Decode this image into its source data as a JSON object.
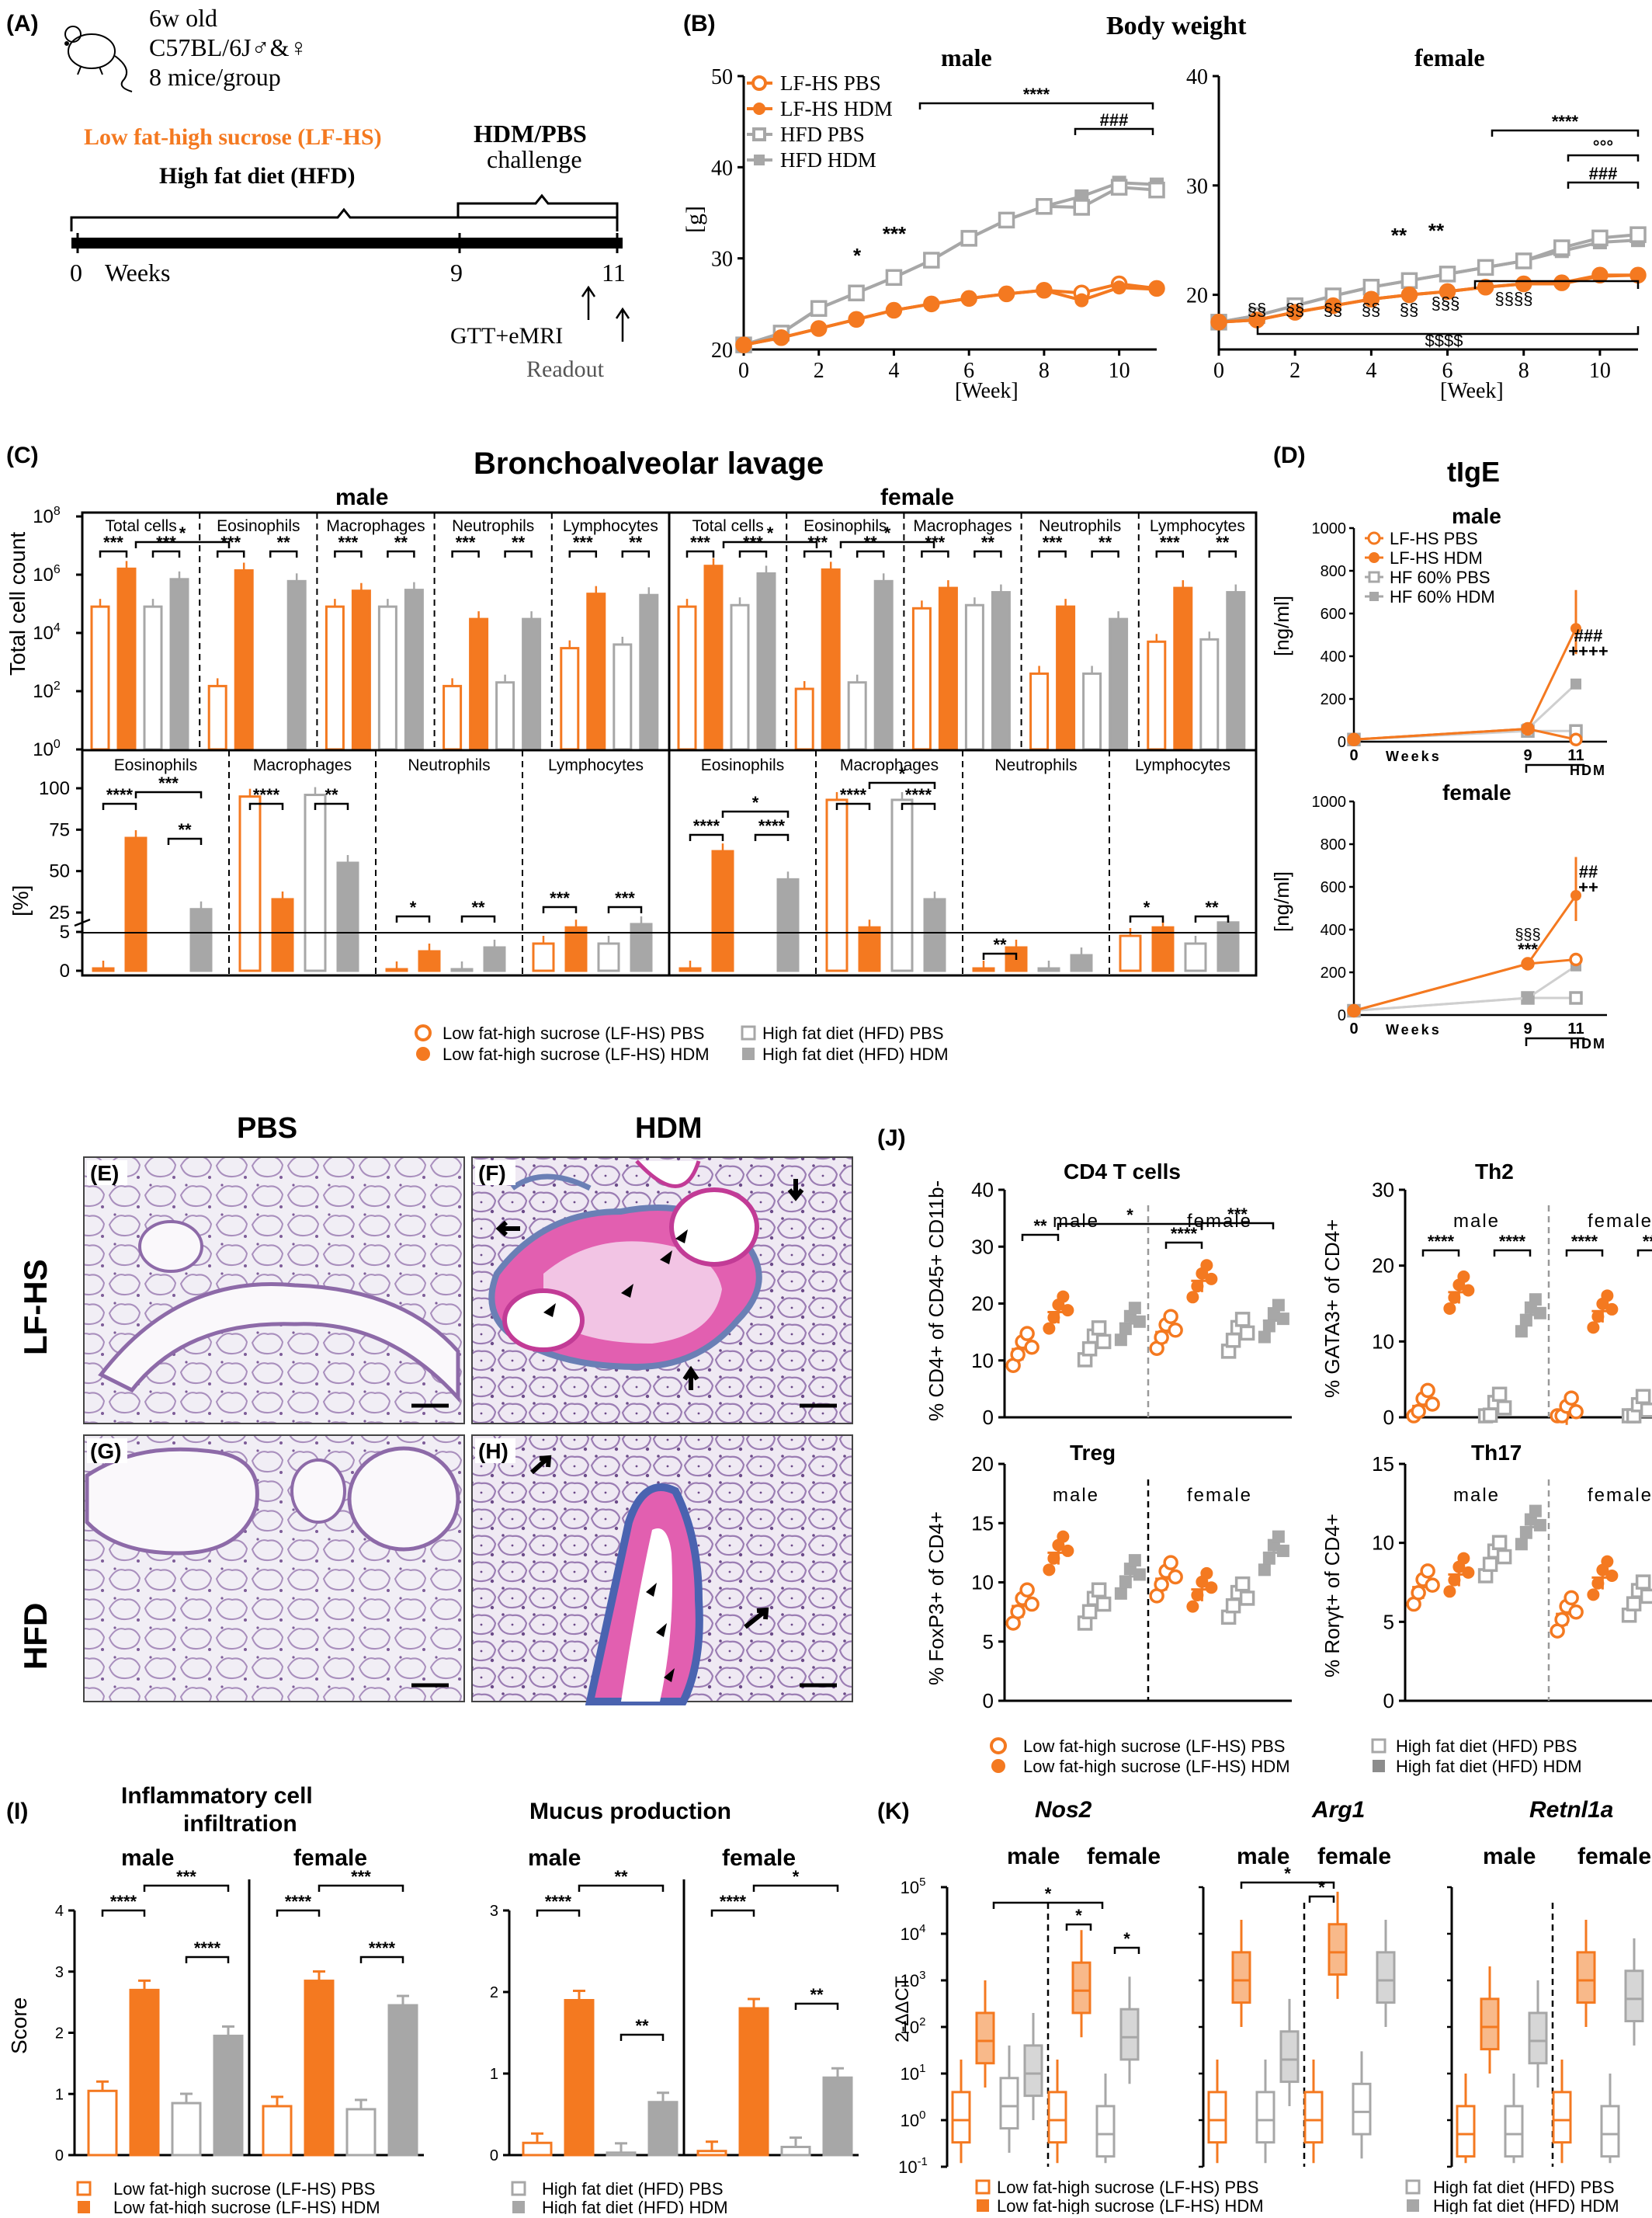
{
  "colors": {
    "orange": "#F47920",
    "gray": "#A7A7A7",
    "gray_dark": "#8C8C8C",
    "black": "#000000"
  },
  "panels": {
    "A": {
      "label": "(A)",
      "mouse_info": [
        "6w old",
        "C57BL/6J♂&♀",
        "8 mice/group"
      ],
      "diet_lf": "Low fat-high sucrose (LF-HS)",
      "diet_hfd": "High fat diet (HFD)",
      "challenge_title": "HDM/PBS",
      "challenge_sub": "challenge",
      "ticks": [
        "0",
        "9",
        "11"
      ],
      "weeks_label": "Weeks",
      "gtt": "GTT+eMRI",
      "readout": "Readout"
    },
    "B": {
      "label": "(B)",
      "title": "Body weight",
      "ylabel": "[g]",
      "xlabel": "[Week]",
      "male": {
        "title": "male",
        "sig": [
          "****",
          "###",
          "*",
          "***"
        ]
      },
      "female": {
        "title": "female",
        "sig": [
          "****",
          "°°°",
          "###",
          "**",
          "**",
          "§§",
          "§§",
          "§§",
          "§§",
          "§§§",
          "§§§",
          "§§§§",
          "$$$$"
        ]
      },
      "legend": [
        "LF-HS PBS",
        "LF-HS HDM",
        "HFD PBS",
        "HFD HDM"
      ]
    },
    "C": {
      "label": "(C)",
      "title": "Bronchoalveolar lavage",
      "ylabel_top": "Total cell count",
      "ylabel_bottom": "[%]",
      "male": "male",
      "female": "female",
      "top_groups": [
        "Total cells",
        "Eosinophils",
        "Macrophages",
        "Neutrophils",
        "Lymphocytes"
      ],
      "bottom_groups": [
        "Eosinophils",
        "Macrophages",
        "Neutrophils",
        "Lymphocytes"
      ],
      "legend": [
        "Low fat-high sucrose (LF-HS) PBS",
        "Low fat-high sucrose (LF-HS) HDM",
        "High fat diet (HFD) PBS",
        "High fat diet (HFD) HDM"
      ]
    },
    "D": {
      "label": "(D)",
      "title": "tIgE",
      "male": "male",
      "female": "female",
      "ylabel": "[ng/ml]",
      "xlabel": "Weeks",
      "hdm": "HDM",
      "legend": [
        "LF-HS PBS",
        "LF-HS HDM",
        "HF 60% PBS",
        "HF 60% HDM"
      ],
      "sig_male": [
        "###",
        "++++"
      ],
      "sig_female": [
        "##",
        "++",
        "§§§",
        "***"
      ]
    },
    "histology": {
      "col_pbs": "PBS",
      "col_hdm": "HDM",
      "row_lf": "LF-HS",
      "row_hfd": "HFD",
      "panels": [
        "(E)",
        "(F)",
        "(G)",
        "(H)"
      ]
    },
    "I": {
      "label": "(I)",
      "title1": "Inflammatory cell",
      "title1b": "infiltration",
      "title2": "Mucus production",
      "male": "male",
      "female": "female",
      "ylabel": "Score",
      "legend": [
        "Low fat-high sucrose (LF-HS) PBS",
        "Low fat-high sucrose (LF-HS) HDM",
        "High fat diet (HFD) PBS",
        "High fat diet (HFD) HDM"
      ]
    },
    "J": {
      "label": "(J)",
      "titles": [
        "CD4 T cells",
        "Th2",
        "Treg",
        "Th17"
      ],
      "ylabels": [
        "% CD4+ of CD45+ CD11b-",
        "% GATA3+ of CD4+",
        "% FoxP3+ of CD4+",
        "% Rorγt+ of CD4+"
      ],
      "male": "male",
      "female": "female",
      "legend": [
        "Low fat-high sucrose (LF-HS) PBS",
        "Low fat-high sucrose (LF-HS) HDM",
        "High fat diet (HFD) PBS",
        "High fat diet (HFD) HDM"
      ]
    },
    "K": {
      "label": "(K)",
      "genes": [
        "Nos2",
        "Arg1",
        "Retnl1a"
      ],
      "male": "male",
      "female": "female",
      "ylabel": "2-ΔΔCT",
      "legend": [
        "Low fat-high sucrose (LF-HS) PBS",
        "Low fat-high sucrose (LF-HS) HDM",
        "High fat diet (HFD) PBS",
        "High fat diet (HFD) HDM"
      ]
    }
  },
  "chart_data": [
    {
      "type": "line",
      "panel": "B-male",
      "title": "male",
      "xlabel": "[Week]",
      "ylabel": "[g]",
      "ylim": [
        20,
        50
      ],
      "x": [
        0,
        1,
        2,
        3,
        4,
        5,
        6,
        7,
        8,
        9,
        10,
        11
      ],
      "series": [
        {
          "name": "LF-HS PBS",
          "values": [
            20.5,
            21.3,
            22.3,
            23.3,
            24.3,
            25.0,
            25.6,
            26.1,
            26.5,
            26.2,
            27.2,
            26.7
          ]
        },
        {
          "name": "LF-HS HDM",
          "values": [
            20.5,
            21.3,
            22.3,
            23.3,
            24.3,
            25.0,
            25.6,
            26.1,
            26.5,
            25.4,
            26.8,
            26.6
          ]
        },
        {
          "name": "HFD PBS",
          "values": [
            20.5,
            21.8,
            24.5,
            26.2,
            27.9,
            29.8,
            32.2,
            34.2,
            35.7,
            35.6,
            37.8,
            37.5
          ]
        },
        {
          "name": "HFD HDM",
          "values": [
            20.5,
            21.8,
            24.5,
            26.2,
            27.9,
            29.8,
            32.2,
            34.2,
            35.7,
            36.8,
            38.3,
            38.1
          ]
        }
      ]
    },
    {
      "type": "line",
      "panel": "B-female",
      "title": "female",
      "xlabel": "[Week]",
      "ylim": [
        15,
        40
      ],
      "x": [
        0,
        1,
        2,
        3,
        4,
        5,
        6,
        7,
        8,
        9,
        10,
        11
      ],
      "series": [
        {
          "name": "LF-HS PBS",
          "values": [
            17.5,
            17.7,
            18.4,
            19.0,
            19.6,
            20.0,
            20.3,
            20.7,
            21.0,
            21.1,
            21.8,
            21.8
          ]
        },
        {
          "name": "LF-HS HDM",
          "values": [
            17.5,
            17.7,
            18.4,
            19.0,
            19.6,
            20.0,
            20.3,
            20.7,
            21.0,
            21.0,
            21.7,
            21.8
          ]
        },
        {
          "name": "HFD PBS",
          "values": [
            17.5,
            18.1,
            19.0,
            19.9,
            20.7,
            21.3,
            21.9,
            22.5,
            23.1,
            24.3,
            25.2,
            25.5
          ]
        },
        {
          "name": "HFD HDM",
          "values": [
            17.5,
            18.1,
            19.0,
            19.9,
            20.7,
            21.3,
            21.9,
            22.5,
            23.1,
            24.0,
            24.8,
            25.0
          ]
        }
      ]
    },
    {
      "type": "bar",
      "panel": "C-top",
      "scale": "log",
      "ylim": [
        1,
        100000000
      ],
      "categories": [
        "male Total cells",
        "male Eosinophils",
        "male Macrophages",
        "male Neutrophils",
        "male Lymphocytes",
        "female Total cells",
        "female Eosinophils",
        "female Macrophages",
        "female Neutrophils",
        "female Lymphocytes"
      ],
      "series": [
        {
          "name": "LF-HS PBS",
          "values": [
            80000,
            150,
            80000,
            150,
            3000,
            80000,
            120,
            70000,
            400,
            5000
          ]
        },
        {
          "name": "LF-HS HDM",
          "values": [
            1600000,
            1400000,
            280000,
            30000,
            220000,
            2000000,
            1500000,
            350000,
            80000,
            350000
          ]
        },
        {
          "name": "HFD PBS",
          "values": [
            80000,
            0,
            80000,
            200,
            4000,
            90000,
            200,
            90000,
            400,
            6000
          ]
        },
        {
          "name": "HFD HDM",
          "values": [
            700000,
            600000,
            300000,
            30000,
            200000,
            1100000,
            600000,
            250000,
            30000,
            250000
          ]
        }
      ]
    },
    {
      "type": "bar",
      "panel": "C-bottom",
      "ylabel": "[%]",
      "categories": [
        "male Eosinophils",
        "male Macrophages",
        "male Neutrophils",
        "male Lymphocytes",
        "female Eosinophils",
        "female Macrophages",
        "female Neutrophils",
        "female Lymphocytes"
      ],
      "series": [
        {
          "name": "LF-HS PBS",
          "values": [
            0.3,
            95,
            0.2,
            3.5,
            0.3,
            93,
            0.3,
            4.5
          ]
        },
        {
          "name": "LF-HS HDM",
          "values": [
            70,
            33,
            2.5,
            16,
            62,
            16,
            3,
            16
          ]
        },
        {
          "name": "HFD PBS",
          "values": [
            0,
            96,
            0.2,
            3.5,
            0,
            93,
            0.3,
            3.5
          ]
        },
        {
          "name": "HFD HDM",
          "values": [
            27,
            55,
            3,
            18,
            45,
            33,
            2,
            19
          ]
        }
      ]
    },
    {
      "type": "line",
      "panel": "D-male",
      "title": "male",
      "xlabel": "Weeks",
      "ylabel": "[ng/ml]",
      "ylim": [
        0,
        1000
      ],
      "x": [
        0,
        9,
        11
      ],
      "series": [
        {
          "name": "LF-HS PBS",
          "values": [
            10,
            60,
            10
          ]
        },
        {
          "name": "LF-HS HDM",
          "values": [
            10,
            60,
            530
          ]
        },
        {
          "name": "HF 60% PBS",
          "values": [
            10,
            50,
            50
          ]
        },
        {
          "name": "HF 60% HDM",
          "values": [
            10,
            60,
            270
          ]
        }
      ]
    },
    {
      "type": "line",
      "panel": "D-female",
      "title": "female",
      "xlabel": "Weeks",
      "ylabel": "[ng/ml]",
      "ylim": [
        0,
        1000
      ],
      "x": [
        0,
        9,
        11
      ],
      "series": [
        {
          "name": "LF-HS PBS",
          "values": [
            20,
            240,
            260
          ]
        },
        {
          "name": "LF-HS HDM",
          "values": [
            20,
            240,
            560
          ]
        },
        {
          "name": "HF 60% PBS",
          "values": [
            20,
            80,
            80
          ]
        },
        {
          "name": "HF 60% HDM",
          "values": [
            20,
            80,
            230
          ]
        }
      ]
    },
    {
      "type": "bar",
      "panel": "I-inflammatory",
      "ylabel": "Score",
      "ylim": [
        0,
        4
      ],
      "categories": [
        "male",
        "female"
      ],
      "series": [
        {
          "name": "LF-HS PBS",
          "values": [
            1.05,
            0.8
          ]
        },
        {
          "name": "LF-HS HDM",
          "values": [
            2.7,
            2.85
          ]
        },
        {
          "name": "HFD PBS",
          "values": [
            0.85,
            0.75
          ]
        },
        {
          "name": "HFD HDM",
          "values": [
            1.95,
            2.45
          ]
        }
      ]
    },
    {
      "type": "bar",
      "panel": "I-mucus",
      "ylim": [
        0,
        3
      ],
      "categories": [
        "male",
        "female"
      ],
      "series": [
        {
          "name": "LF-HS PBS",
          "values": [
            0.15,
            0.05
          ]
        },
        {
          "name": "LF-HS HDM",
          "values": [
            1.9,
            1.8
          ]
        },
        {
          "name": "HFD PBS",
          "values": [
            0.03,
            0.1
          ]
        },
        {
          "name": "HFD HDM",
          "values": [
            0.65,
            0.95
          ]
        }
      ]
    },
    {
      "type": "scatter",
      "panel": "J-CD4",
      "title": "CD4 T cells",
      "ylim": [
        0,
        40
      ],
      "categories": [
        "male LF-HS PBS",
        "male LF-HS HDM",
        "male HFD PBS",
        "male HFD HDM",
        "female LF-HS PBS",
        "female LF-HS HDM",
        "female HFD PBS",
        "female HFD HDM"
      ],
      "means": [
        12,
        18.5,
        13,
        16.5,
        15,
        24,
        14.5,
        17
      ]
    },
    {
      "type": "scatter",
      "panel": "J-Th2",
      "title": "Th2",
      "ylim": [
        0,
        30
      ],
      "categories": [
        "male LF-HS PBS",
        "male LF-HS HDM",
        "male HFD PBS",
        "male HFD HDM",
        "female LF-HS PBS",
        "female LF-HS HDM",
        "female HFD PBS",
        "female HFD HDM"
      ],
      "means": [
        1.5,
        16.5,
        1,
        13.5,
        0.5,
        14,
        0.7,
        16.5
      ]
    },
    {
      "type": "scatter",
      "panel": "J-Treg",
      "title": "Treg",
      "ylim": [
        0,
        20
      ],
      "categories": [
        "male LF-HS PBS",
        "male LF-HS HDM",
        "male HFD PBS",
        "male HFD HDM",
        "female LF-HS PBS",
        "female LF-HS HDM",
        "female HFD PBS",
        "female HFD HDM"
      ],
      "means": [
        8,
        12.5,
        8,
        10.5,
        10.3,
        9.4,
        8.5,
        12.5
      ]
    },
    {
      "type": "scatter",
      "panel": "J-Th17",
      "title": "Th17",
      "ylim": [
        0,
        15
      ],
      "categories": [
        "male LF-HS PBS",
        "male LF-HS HDM",
        "male HFD PBS",
        "male HFD HDM",
        "female LF-HS PBS",
        "female LF-HS HDM",
        "female HFD PBS",
        "female HFD HDM"
      ],
      "means": [
        7.2,
        8,
        9,
        11,
        5.5,
        7.8,
        6.5,
        9.5
      ]
    },
    {
      "type": "box",
      "panel": "K",
      "scale": "log",
      "ylim": [
        0.1,
        100000
      ],
      "genes": [
        "Nos2",
        "Arg1",
        "Retnl1a"
      ],
      "medians": {
        "Nos2": [
          1,
          50,
          2,
          10,
          1,
          600,
          0.5,
          60
        ],
        "Arg1": [
          1,
          1000,
          1,
          20,
          1,
          4000,
          1.5,
          1000
        ],
        "Retnl1a": [
          0.5,
          100,
          0.5,
          50,
          1,
          1000,
          0.5,
          400
        ]
      }
    }
  ]
}
